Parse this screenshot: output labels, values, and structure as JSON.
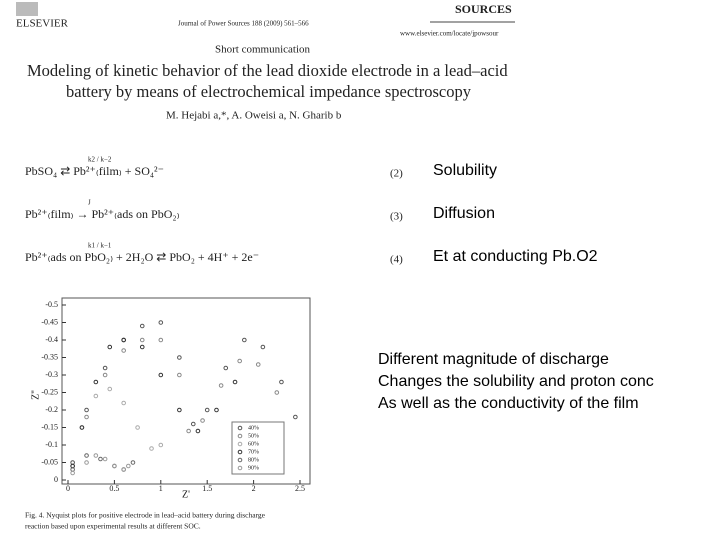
{
  "header": {
    "publisher": "ELSEVIER",
    "journal": "Journal of Power Sources 188 (2009) 561–566",
    "logo": "SOURCES",
    "url": "www.elsevier.com/locate/jpowsour",
    "section": "Short communication",
    "title_lines": [
      "Modeling of kinetic behavior of the lead dioxide electrode in a lead–acid",
      "battery by means of electrochemical impedance spectroscopy"
    ],
    "authors": "M. Hejabi a,*, A. Oweisi a, N. Gharib b"
  },
  "equations": [
    {
      "formula": "PbSO₄ ⇄ Pb²⁺₍film₎ + SO₄²⁻",
      "rate": "k2 / k−2",
      "number": "(2)",
      "label": "Solubility"
    },
    {
      "formula": "Pb²⁺₍film₎ → Pb²⁺₍ads on PbO₂₎",
      "rate": "J",
      "number": "(3)",
      "label": "Diffusion"
    },
    {
      "formula": "Pb²⁺₍ads on PbO₂₎ + 2H₂O ⇄ PbO₂ + 4H⁺ + 2e⁻",
      "rate": "k1 / k−1",
      "number": "(4)",
      "label": "Et at conducting Pb.O2"
    }
  ],
  "notes": [
    "Different magnitude of discharge",
    "Changes the solubility and proton conc",
    "As well as the conductivity of the film"
  ],
  "chart_data": {
    "type": "scatter",
    "xlabel": "Z'",
    "ylabel": "Z''",
    "xlim": [
      0,
      2.5
    ],
    "ylim": [
      0,
      -0.5
    ],
    "xticks": [
      0,
      0.5,
      1,
      1.5,
      2,
      2.5
    ],
    "yticks": [
      -0.5,
      -0.45,
      -0.4,
      -0.35,
      -0.3,
      -0.25,
      -0.2,
      -0.15,
      -0.1,
      -0.05,
      0
    ],
    "legend": "lower right",
    "series": [
      {
        "name": "40%",
        "color": "#555555",
        "x": [
          0.05,
          0.2,
          0.4,
          0.6,
          0.8,
          1.0,
          1.2,
          1.35,
          1.5,
          1.7,
          1.9,
          2.1,
          2.3,
          2.45
        ],
        "values": [
          -0.05,
          -0.2,
          -0.32,
          -0.4,
          -0.44,
          -0.45,
          -0.35,
          -0.16,
          -0.2,
          -0.32,
          -0.4,
          -0.38,
          -0.28,
          -0.18
        ]
      },
      {
        "name": "50%",
        "color": "#888888",
        "x": [
          0.05,
          0.2,
          0.4,
          0.6,
          0.8,
          1.0,
          1.2,
          1.3,
          1.45,
          1.65,
          1.85,
          2.05,
          2.25
        ],
        "values": [
          -0.04,
          -0.18,
          -0.3,
          -0.37,
          -0.4,
          -0.4,
          -0.3,
          -0.14,
          -0.17,
          -0.27,
          -0.34,
          -0.33,
          -0.25
        ]
      },
      {
        "name": "60%",
        "color": "#aaaaaa",
        "x": [
          0.05,
          0.15,
          0.3,
          0.45,
          0.6,
          0.75,
          0.9,
          1.0
        ],
        "values": [
          -0.04,
          -0.15,
          -0.24,
          -0.26,
          -0.22,
          -0.15,
          -0.09,
          -0.1
        ]
      },
      {
        "name": "70%",
        "color": "#333333",
        "x": [
          0.05,
          0.15,
          0.3,
          0.45,
          0.6,
          0.8,
          1.0,
          1.2,
          1.4,
          1.6,
          1.8
        ],
        "values": [
          -0.04,
          -0.15,
          -0.28,
          -0.38,
          -0.4,
          -0.38,
          -0.3,
          -0.2,
          -0.14,
          -0.2,
          -0.28
        ]
      },
      {
        "name": "80%",
        "color": "#666666",
        "x": [
          0.05,
          0.2,
          0.35,
          0.5,
          0.6,
          0.7
        ],
        "values": [
          -0.03,
          -0.07,
          -0.06,
          -0.04,
          -0.03,
          -0.05
        ]
      },
      {
        "name": "90%",
        "color": "#999999",
        "x": [
          0.05,
          0.2,
          0.3,
          0.4,
          0.5,
          0.6,
          0.65
        ],
        "values": [
          -0.02,
          -0.05,
          -0.07,
          -0.06,
          -0.04,
          -0.03,
          -0.04
        ]
      }
    ],
    "caption_lines": [
      "Fig. 4. Nyquist plots for positive electrode in lead–acid battery during discharge",
      "reaction based upon experimental results at different SOC."
    ]
  }
}
